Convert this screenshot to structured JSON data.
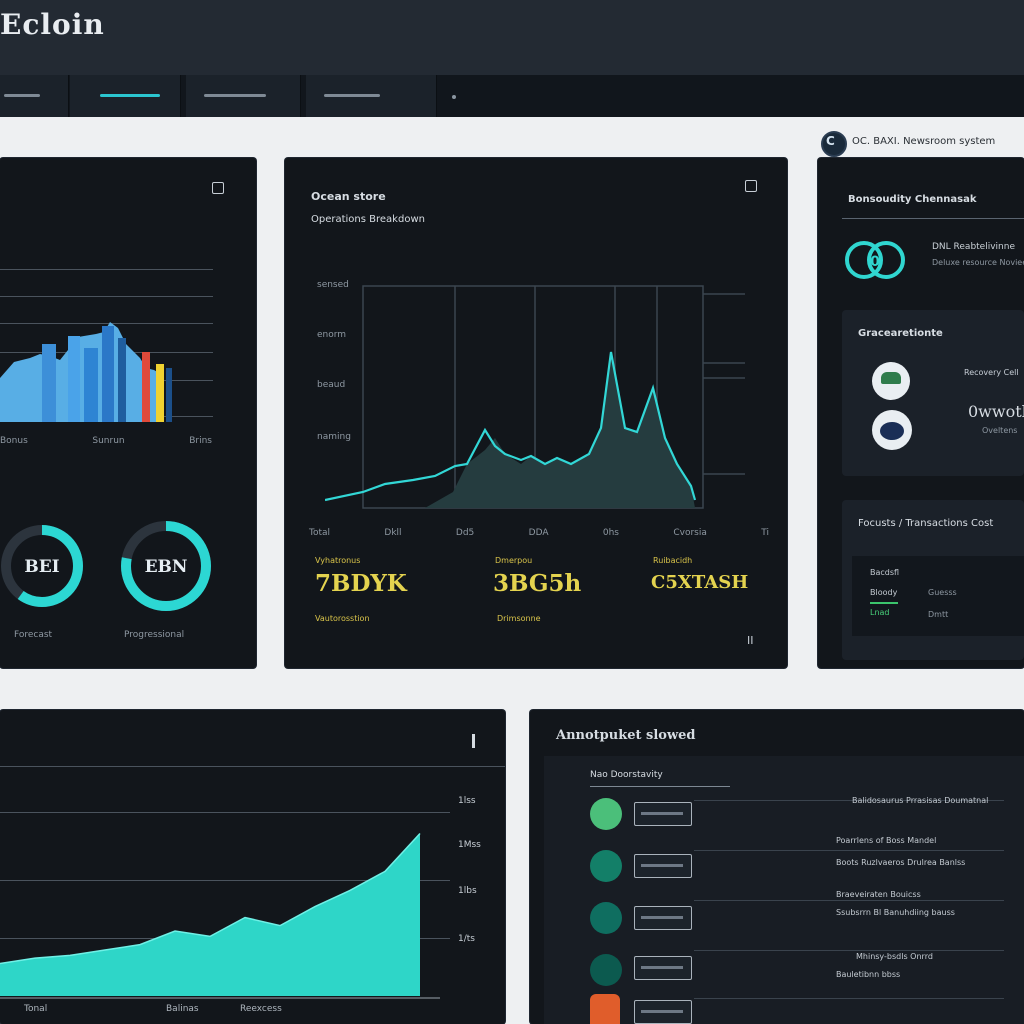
{
  "app": {
    "title": "Ecloin"
  },
  "nav": {
    "tabs": [
      {
        "label": ""
      },
      {
        "label": ""
      },
      {
        "label": ""
      },
      {
        "label": ""
      }
    ]
  },
  "header_right": {
    "text": "OC. BAXI. Newsroom system"
  },
  "panel_bars": {
    "axis_labels": [
      "Bonus",
      "Sunrun",
      "Brins"
    ],
    "donuts": [
      {
        "value_label": "BEI",
        "caption": "Forecast",
        "percent": 60
      },
      {
        "value_label": "EBN",
        "caption": "Progressional",
        "percent": 78
      }
    ]
  },
  "panel_line": {
    "title": "Ocean store",
    "subtitle": "Operations Breakdown",
    "y_ticks": [
      "sensed",
      "enorm",
      "beaud",
      "naming"
    ],
    "x_ticks": [
      "Total",
      "Dkll",
      "Dd5",
      "DDA",
      "0hs",
      "Cvorsia",
      "Ti"
    ],
    "stats": [
      {
        "label": "Vyhatronus",
        "value": "7BDYK",
        "sub": "Vautorosstion"
      },
      {
        "label": "Dmerpou",
        "value": "3BG5h",
        "sub": "Drimsonne"
      },
      {
        "label": "Ruibacidh",
        "value": "C5XTASH",
        "sub": ""
      }
    ],
    "footer": "II"
  },
  "panel_right": {
    "title": "Bonsoudity Chennasak",
    "profile_name": "DNL Reabtelivinne",
    "profile_sub": "Deluxe resource Noviee",
    "card_title": "Gracearetionte",
    "card_line": "Recovery Cell",
    "card_value": "0wwoth",
    "card_value_sub": "Oveltens",
    "mini_title": "Focusts / Transactions Cost",
    "mini_rows": [
      {
        "label": "Bacdsfl",
        "value": ""
      },
      {
        "label": "Bloody",
        "value": "Guesss"
      },
      {
        "label": "Lnad",
        "value": "Dmtt"
      }
    ]
  },
  "panel_area": {
    "y_ticks": [
      "1lss",
      "1Mss",
      "1lbs",
      "1/ts"
    ],
    "x_ticks": [
      "Tonal",
      "Balinas",
      "Reexcess"
    ],
    "chart_data": {
      "type": "area",
      "x": [
        0,
        1,
        2,
        3,
        4,
        5,
        6,
        7,
        8,
        9,
        10,
        11,
        12
      ],
      "values": [
        1.2,
        1.4,
        1.5,
        1.7,
        1.9,
        2.4,
        2.2,
        2.9,
        2.6,
        3.3,
        3.9,
        4.6,
        6.0
      ],
      "ylim": [
        0,
        6.5
      ]
    }
  },
  "panel_list": {
    "title": "Annotpuket slowed",
    "list_header": "Nao Doorstavity",
    "items": [
      {
        "title": "Balidosaurus Prrasisas Doumatnal",
        "sub": "",
        "color": "#4bbf7a"
      },
      {
        "title": "Poarrlens of Boss Mandel",
        "sub": "Boots Ruzlvaeros Drulrea Banlss",
        "color": "#137f68"
      },
      {
        "title": "Braeveiraten Bouicss",
        "sub": "Ssubsrrn Bl Banuhdiing bauss",
        "color": "#0f6e60"
      },
      {
        "title": "Mhinsy-bsdls Onrrd",
        "sub": "Bauletibnn bbss",
        "color": "#0c5a4f"
      },
      {
        "title": "",
        "sub": "",
        "color": "#e05d2b"
      }
    ]
  }
}
